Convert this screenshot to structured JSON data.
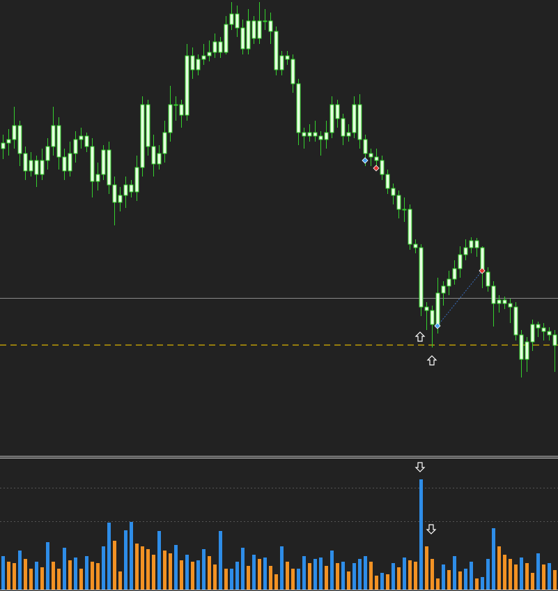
{
  "chart_data": [
    {
      "type": "candlestick",
      "ylim": [
        0,
        653
      ],
      "color": "#35d12e",
      "body_color": "#e6ffe0",
      "open": [
        440,
        448,
        453,
        473,
        433,
        408,
        423,
        403,
        423,
        443,
        473,
        428,
        408,
        433,
        453,
        458,
        443,
        393,
        403,
        438,
        388,
        363,
        373,
        388,
        378,
        413,
        503,
        443,
        418,
        433,
        463,
        503,
        503,
        488,
        573,
        553,
        568,
        573,
        578,
        593,
        578,
        618,
        633,
        613,
        583,
        623,
        598,
        623,
        623,
        608,
        553,
        573,
        568,
        533,
        463,
        458,
        463,
        458,
        453,
        463,
        503,
        483,
        458,
        463,
        503,
        453,
        433,
        428,
        423,
        403,
        383,
        373,
        353,
        353,
        303,
        298,
        213,
        208,
        188,
        233,
        243,
        253,
        268,
        288,
        298,
        308,
        298,
        263,
        243,
        218,
        223,
        218,
        213,
        173,
        138,
        163,
        188,
        183,
        178,
        173
      ],
      "high": [
        460,
        468,
        500,
        480,
        443,
        435,
        430,
        440,
        455,
        500,
        485,
        440,
        450,
        465,
        470,
        463,
        455,
        420,
        445,
        450,
        400,
        385,
        400,
        395,
        430,
        515,
        510,
        460,
        445,
        480,
        530,
        515,
        510,
        590,
        585,
        575,
        590,
        595,
        605,
        600,
        630,
        650,
        645,
        625,
        640,
        630,
        650,
        640,
        635,
        615,
        580,
        580,
        575,
        540,
        470,
        475,
        480,
        465,
        480,
        515,
        510,
        490,
        475,
        515,
        518,
        460,
        440,
        440,
        430,
        410,
        390,
        380,
        370,
        360,
        310,
        303,
        220,
        215,
        255,
        250,
        265,
        280,
        300,
        310,
        313,
        312,
        300,
        270,
        250,
        230,
        228,
        225,
        220,
        180,
        170,
        195,
        192,
        190,
        184,
        180
      ],
      "low": [
        425,
        430,
        440,
        415,
        395,
        400,
        385,
        395,
        410,
        430,
        410,
        395,
        400,
        420,
        440,
        435,
        370,
        380,
        395,
        375,
        330,
        350,
        355,
        370,
        365,
        400,
        430,
        400,
        410,
        420,
        450,
        480,
        470,
        480,
        540,
        545,
        560,
        565,
        570,
        570,
        575,
        610,
        600,
        575,
        575,
        590,
        590,
        610,
        590,
        545,
        545,
        560,
        520,
        445,
        440,
        450,
        450,
        430,
        440,
        455,
        470,
        445,
        450,
        455,
        440,
        415,
        415,
        410,
        395,
        375,
        360,
        340,
        335,
        295,
        290,
        200,
        180,
        155,
        175,
        215,
        230,
        245,
        255,
        280,
        290,
        285,
        240,
        235,
        185,
        205,
        210,
        190,
        165,
        112,
        120,
        150,
        170,
        165,
        165,
        120
      ],
      "close": [
        448,
        453,
        473,
        433,
        408,
        423,
        403,
        423,
        443,
        473,
        428,
        408,
        433,
        453,
        458,
        443,
        393,
        403,
        438,
        388,
        363,
        373,
        388,
        378,
        413,
        503,
        443,
        418,
        433,
        463,
        503,
        503,
        488,
        573,
        553,
        568,
        573,
        578,
        593,
        578,
        618,
        633,
        613,
        583,
        623,
        598,
        623,
        623,
        608,
        553,
        573,
        568,
        533,
        463,
        458,
        463,
        458,
        453,
        463,
        503,
        483,
        458,
        463,
        503,
        453,
        433,
        428,
        423,
        403,
        383,
        373,
        353,
        353,
        303,
        298,
        213,
        208,
        188,
        233,
        243,
        253,
        268,
        288,
        298,
        308,
        298,
        263,
        243,
        218,
        223,
        218,
        213,
        173,
        138,
        163,
        188,
        183,
        178,
        173,
        158
      ],
      "hlines": [
        {
          "value": 226,
          "color": "#8a8a8a",
          "style": "solid"
        },
        {
          "value": 159,
          "color": "#d9b300",
          "style": "dashed"
        }
      ]
    },
    {
      "type": "bar",
      "ylim": [
        0,
        190
      ],
      "color_up": "#2e8de8",
      "color_down": "#f29224",
      "grid_levels": [
        98,
        146
      ],
      "values": [
        48,
        40,
        38,
        56,
        44,
        30,
        40,
        32,
        68,
        40,
        30,
        60,
        42,
        46,
        30,
        48,
        40,
        38,
        62,
        96,
        70,
        26,
        85,
        97,
        66,
        62,
        58,
        50,
        84,
        56,
        52,
        64,
        42,
        50,
        40,
        42,
        58,
        48,
        36,
        84,
        30,
        30,
        40,
        60,
        34,
        50,
        44,
        46,
        34,
        22,
        62,
        40,
        30,
        30,
        48,
        38,
        44,
        46,
        34,
        56,
        38,
        40,
        26,
        38,
        44,
        48,
        40,
        20,
        24,
        22,
        38,
        32,
        46,
        42,
        40,
        158,
        62,
        44,
        16,
        36,
        28,
        48,
        26,
        30,
        40,
        16,
        18,
        44,
        88,
        62,
        50,
        44,
        36,
        46,
        38,
        24,
        52,
        36,
        38,
        28
      ]
    }
  ]
}
